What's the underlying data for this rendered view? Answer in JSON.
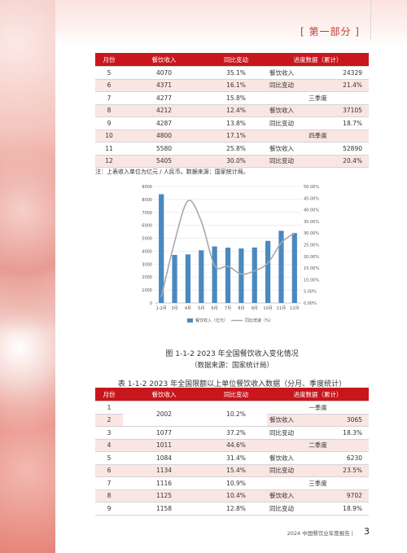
{
  "header": {
    "section_tag": "[ 第一部分 ]"
  },
  "table1": {
    "headers": [
      "月份",
      "餐饮收入",
      "同比变动",
      "进度数据（累计）"
    ],
    "rows": [
      [
        "5",
        "4070",
        "35.1%",
        "餐饮收入",
        "24329"
      ],
      [
        "6",
        "4371",
        "16.1%",
        "同比变动",
        "21.4%"
      ],
      [
        "7",
        "4277",
        "15.8%",
        "三季度",
        ""
      ],
      [
        "8",
        "4212",
        "12.4%",
        "餐饮收入",
        "37105"
      ],
      [
        "9",
        "4287",
        "13.8%",
        "同比变动",
        "18.7%"
      ],
      [
        "10",
        "4800",
        "17.1%",
        "四季度",
        ""
      ],
      [
        "11",
        "5580",
        "25.8%",
        "餐饮收入",
        "52890"
      ],
      [
        "12",
        "5405",
        "30.0%",
        "同比变动",
        "20.4%"
      ]
    ],
    "note": "注：上表收入单位为亿元 / 人民币。数据来源：国家统计局。"
  },
  "chart_data": {
    "type": "bar",
    "categories": [
      "1-2月",
      "3月",
      "4月",
      "5月",
      "6月",
      "7月",
      "8月",
      "9月",
      "10月",
      "11月",
      "12月"
    ],
    "series": [
      {
        "name": "餐饮收入（亿元）",
        "type": "bar",
        "axis": "left",
        "color": "#4a89c0",
        "values": [
          8404,
          3715,
          3751,
          4070,
          4371,
          4277,
          4212,
          4287,
          4800,
          5580,
          5405
        ]
      },
      {
        "name": "同比增速（%）",
        "type": "line",
        "axis": "right",
        "color": "#a8a8a8",
        "values": [
          2.5,
          26.3,
          43.8,
          35.1,
          16.1,
          15.8,
          12.4,
          13.8,
          17.1,
          25.8,
          30.0
        ]
      }
    ],
    "left_ticks": [
      "0",
      "1000",
      "2000",
      "3000",
      "4000",
      "5000",
      "6000",
      "7000",
      "8000",
      "9000"
    ],
    "right_ticks": [
      "0.00%",
      "5.00%",
      "10.00%",
      "15.00%",
      "20.00%",
      "25.00%",
      "30.00%",
      "35.00%",
      "40.00%",
      "45.00%",
      "50.00%"
    ],
    "ylim_left": [
      0,
      9000
    ],
    "ylim_right": [
      0,
      50
    ],
    "legend": [
      "餐饮收入（亿元）",
      "同比增速（%）"
    ],
    "legend_position": "bottom",
    "grid": true
  },
  "figure": {
    "caption": "图 1-1-2   2023 年全国餐饮收入变化情况",
    "source": "（数据来源：国家统计局）"
  },
  "table2": {
    "title": "表 1-1-2   2023 年全国限额以上单位餐饮收入数据（分月、季度统计）",
    "headers": [
      "月份",
      "餐饮收入",
      "同比变动",
      "进度数据（累计）"
    ],
    "rows": [
      [
        "1",
        "2002",
        "10.2%",
        "一季度",
        ""
      ],
      [
        "2",
        "",
        "",
        "餐饮收入",
        "3065"
      ],
      [
        "3",
        "1077",
        "37.2%",
        "同比变动",
        "18.3%"
      ],
      [
        "4",
        "1011",
        "44.6%",
        "二季度",
        ""
      ],
      [
        "5",
        "1084",
        "31.4%",
        "餐饮收入",
        "6230"
      ],
      [
        "6",
        "1134",
        "15.4%",
        "同比变动",
        "23.5%"
      ],
      [
        "7",
        "1116",
        "10.9%",
        "三季度",
        ""
      ],
      [
        "8",
        "1125",
        "10.4%",
        "餐饮收入",
        "9702"
      ],
      [
        "9",
        "1158",
        "12.8%",
        "同比变动",
        "18.9%"
      ]
    ]
  },
  "footer": {
    "text": "2024 中国餐饮业年度报告 |",
    "page": "3"
  }
}
